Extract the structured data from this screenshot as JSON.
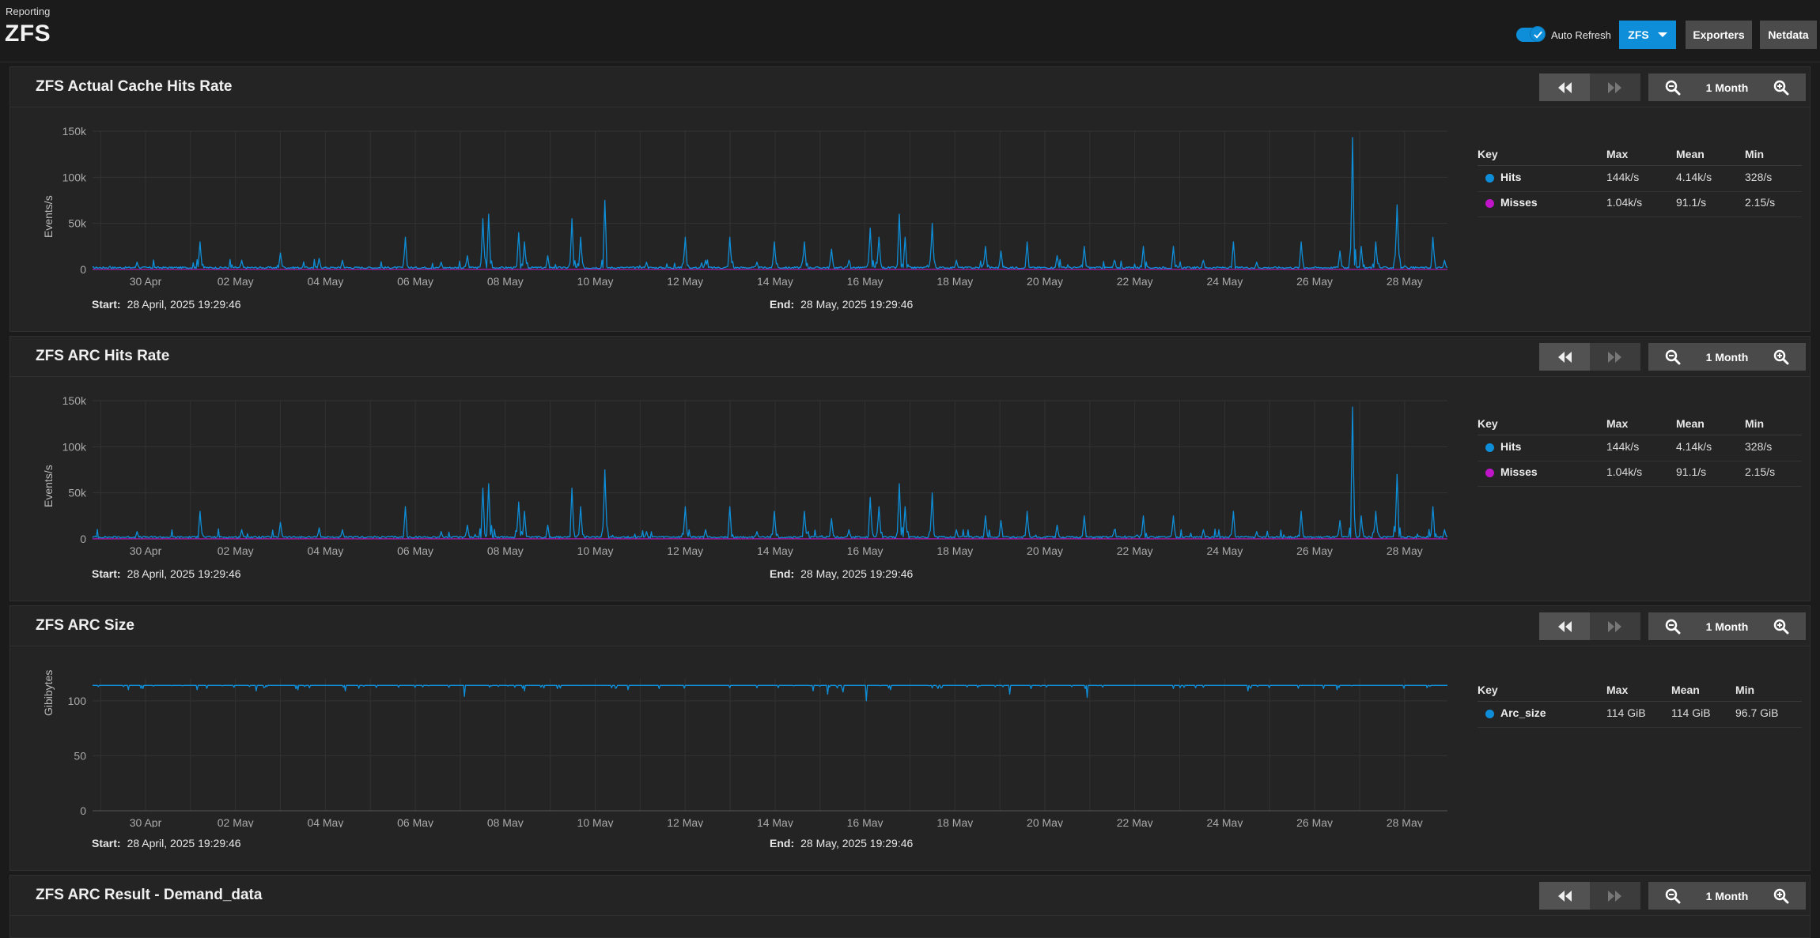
{
  "header": {
    "breadcrumb": "Reporting",
    "title": "ZFS",
    "auto_refresh_label": "Auto Refresh",
    "auto_refresh_on": true,
    "zfs_button": "ZFS",
    "exporters_button": "Exporters",
    "netdata_button": "Netdata"
  },
  "colors": {
    "hits": "#0e8ed8",
    "misses": "#c014c8",
    "accent": "#0e8ed8"
  },
  "cards": [
    {
      "title": "ZFS Actual Cache Hits Rate",
      "zoom_label": "1 Month",
      "ylabel": "Events/s",
      "start_label": "Start:",
      "start": "28 April, 2025 19:29:46",
      "end_label": "End:",
      "end": "28 May, 2025 19:29:46",
      "legend": {
        "headers": [
          "Key",
          "Max",
          "Mean",
          "Min"
        ],
        "rows": [
          {
            "name": "Hits",
            "max": "144k/s",
            "mean": "4.14k/s",
            "min": "328/s",
            "color": "#0e8ed8"
          },
          {
            "name": "Misses",
            "max": "1.04k/s",
            "mean": "91.1/s",
            "min": "2.15/s",
            "color": "#c014c8"
          }
        ]
      }
    },
    {
      "title": "ZFS ARC Hits Rate",
      "zoom_label": "1 Month",
      "ylabel": "Events/s",
      "start_label": "Start:",
      "start": "28 April, 2025 19:29:46",
      "end_label": "End:",
      "end": "28 May, 2025 19:29:46",
      "legend": {
        "headers": [
          "Key",
          "Max",
          "Mean",
          "Min"
        ],
        "rows": [
          {
            "name": "Hits",
            "max": "144k/s",
            "mean": "4.14k/s",
            "min": "328/s",
            "color": "#0e8ed8"
          },
          {
            "name": "Misses",
            "max": "1.04k/s",
            "mean": "91.1/s",
            "min": "2.15/s",
            "color": "#c014c8"
          }
        ]
      }
    },
    {
      "title": "ZFS ARC Size",
      "zoom_label": "1 Month",
      "ylabel": "Gibibytes",
      "start_label": "Start:",
      "start": "28 April, 2025 19:29:46",
      "end_label": "End:",
      "end": "28 May, 2025 19:29:46",
      "legend": {
        "headers": [
          "Key",
          "Max",
          "Mean",
          "Min"
        ],
        "rows": [
          {
            "name": "Arc_size",
            "max": "114 GiB",
            "mean": "114 GiB",
            "min": "96.7 GiB",
            "color": "#0e8ed8"
          }
        ]
      }
    },
    {
      "title": "ZFS ARC Result - Demand_data",
      "zoom_label": "1 Month"
    }
  ],
  "chart_data": [
    {
      "type": "line",
      "ylabel": "Events/s",
      "x_ticks": [
        "30 Apr",
        "02 May",
        "04 May",
        "06 May",
        "08 May",
        "10 May",
        "12 May",
        "14 May",
        "16 May",
        "18 May",
        "20 May",
        "22 May",
        "24 May",
        "26 May",
        "28 May"
      ],
      "y_ticks": [
        "0",
        "50k",
        "100k",
        "150k"
      ],
      "ylim": [
        0,
        150000
      ],
      "x_range_days": [
        0,
        30
      ],
      "grid": true,
      "series": [
        {
          "name": "Hits",
          "color": "#0e8ed8",
          "baseline": 2000,
          "peaks": [
            [
              1.5,
              8000
            ],
            [
              3.6,
              30000
            ],
            [
              5.0,
              10000
            ],
            [
              6.3,
              18000
            ],
            [
              7.6,
              12000
            ],
            [
              8.4,
              10000
            ],
            [
              10.5,
              35000
            ],
            [
              11.7,
              8000
            ],
            [
              12.6,
              15000
            ],
            [
              13.1,
              55000
            ],
            [
              13.3,
              60000
            ],
            [
              14.3,
              40000
            ],
            [
              14.5,
              30000
            ],
            [
              15.3,
              15000
            ],
            [
              16.1,
              55000
            ],
            [
              16.4,
              35000
            ],
            [
              17.2,
              75000
            ],
            [
              18.6,
              8000
            ],
            [
              19.9,
              35000
            ],
            [
              20.6,
              10000
            ],
            [
              21.4,
              35000
            ],
            [
              22.3,
              8000
            ],
            [
              22.9,
              30000
            ],
            [
              23.9,
              30000
            ],
            [
              24.8,
              22000
            ],
            [
              25.4,
              10000
            ],
            [
              26.1,
              45000
            ],
            [
              26.4,
              35000
            ],
            [
              27.1,
              60000
            ],
            [
              27.3,
              35000
            ],
            [
              28.2,
              50000
            ],
            [
              29.0,
              10000
            ],
            [
              30.0,
              25000
            ],
            [
              30.5,
              20000
            ],
            [
              31.4,
              30000
            ],
            [
              32.4,
              15000
            ],
            [
              33.3,
              25000
            ],
            [
              34.3,
              10000
            ],
            [
              35.3,
              25000
            ],
            [
              36.3,
              25000
            ],
            [
              37.3,
              10000
            ],
            [
              38.3,
              30000
            ],
            [
              39.1,
              8000
            ],
            [
              40.6,
              30000
            ],
            [
              41.9,
              20000
            ],
            [
              42.3,
              143000
            ],
            [
              42.6,
              25000
            ],
            [
              43.1,
              30000
            ],
            [
              43.8,
              70000
            ],
            [
              45.0,
              35000
            ],
            [
              45.4,
              10000
            ]
          ]
        },
        {
          "name": "Misses",
          "color": "#c014c8",
          "baseline": 100
        }
      ]
    },
    {
      "type": "line",
      "ylabel": "Events/s",
      "x_ticks": [
        "30 Apr",
        "02 May",
        "04 May",
        "06 May",
        "08 May",
        "10 May",
        "12 May",
        "14 May",
        "16 May",
        "18 May",
        "20 May",
        "22 May",
        "24 May",
        "26 May",
        "28 May"
      ],
      "y_ticks": [
        "0",
        "50k",
        "100k",
        "150k"
      ],
      "ylim": [
        0,
        150000
      ],
      "grid": true,
      "series": [
        {
          "name": "Hits",
          "color": "#0e8ed8",
          "baseline": 2000,
          "peaks": [
            [
              1.5,
              8000
            ],
            [
              3.6,
              30000
            ],
            [
              5.0,
              10000
            ],
            [
              6.3,
              18000
            ],
            [
              7.6,
              12000
            ],
            [
              8.4,
              10000
            ],
            [
              10.5,
              35000
            ],
            [
              11.7,
              8000
            ],
            [
              12.6,
              15000
            ],
            [
              13.1,
              55000
            ],
            [
              13.3,
              60000
            ],
            [
              14.3,
              40000
            ],
            [
              14.5,
              30000
            ],
            [
              15.3,
              15000
            ],
            [
              16.1,
              55000
            ],
            [
              16.4,
              35000
            ],
            [
              17.2,
              75000
            ],
            [
              18.6,
              8000
            ],
            [
              19.9,
              35000
            ],
            [
              20.6,
              10000
            ],
            [
              21.4,
              35000
            ],
            [
              22.3,
              8000
            ],
            [
              22.9,
              30000
            ],
            [
              23.9,
              30000
            ],
            [
              24.8,
              22000
            ],
            [
              25.4,
              10000
            ],
            [
              26.1,
              45000
            ],
            [
              26.4,
              35000
            ],
            [
              27.1,
              60000
            ],
            [
              27.3,
              35000
            ],
            [
              28.2,
              50000
            ],
            [
              29.0,
              10000
            ],
            [
              30.0,
              25000
            ],
            [
              30.5,
              20000
            ],
            [
              31.4,
              30000
            ],
            [
              32.4,
              15000
            ],
            [
              33.3,
              25000
            ],
            [
              34.3,
              10000
            ],
            [
              35.3,
              25000
            ],
            [
              36.3,
              25000
            ],
            [
              37.3,
              10000
            ],
            [
              38.3,
              30000
            ],
            [
              39.1,
              8000
            ],
            [
              40.6,
              30000
            ],
            [
              41.9,
              20000
            ],
            [
              42.3,
              143000
            ],
            [
              42.6,
              25000
            ],
            [
              43.1,
              30000
            ],
            [
              43.8,
              70000
            ],
            [
              45.0,
              35000
            ],
            [
              45.4,
              10000
            ]
          ]
        },
        {
          "name": "Misses",
          "color": "#c014c8",
          "baseline": 100
        }
      ]
    },
    {
      "type": "line",
      "ylabel": "Gibibytes",
      "x_ticks": [
        "30 Apr",
        "02 May",
        "04 May",
        "06 May",
        "08 May",
        "10 May",
        "12 May",
        "14 May",
        "16 May",
        "18 May",
        "20 May",
        "22 May",
        "24 May",
        "26 May",
        "28 May"
      ],
      "y_ticks": [
        "0",
        "50",
        "100"
      ],
      "ylim": [
        0,
        120
      ],
      "grid": true,
      "series": [
        {
          "name": "Arc_size",
          "color": "#0e8ed8",
          "baseline": 114,
          "dips": [
            [
              1.2,
              110
            ],
            [
              3.5,
              110
            ],
            [
              5.5,
              109
            ],
            [
              6.9,
              110
            ],
            [
              8.5,
              109
            ],
            [
              12.5,
              104
            ],
            [
              14.5,
              109
            ],
            [
              18.0,
              110
            ],
            [
              24.2,
              109
            ],
            [
              24.7,
              106
            ],
            [
              25.2,
              108
            ],
            [
              26.0,
              100
            ],
            [
              26.8,
              110
            ],
            [
              30.8,
              106
            ],
            [
              31.5,
              111
            ],
            [
              33.4,
              103
            ],
            [
              38.8,
              109
            ],
            [
              41.8,
              110
            ]
          ]
        }
      ]
    }
  ]
}
